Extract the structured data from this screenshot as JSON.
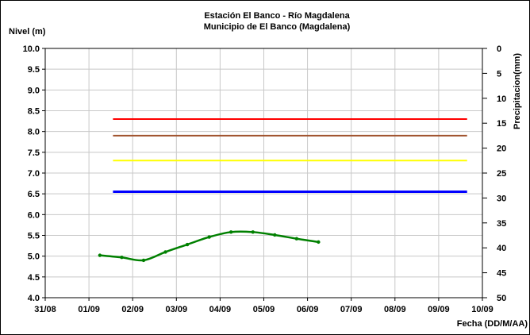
{
  "chart_data": {
    "type": "line",
    "title": "Estación El Banco - Río Magdalena",
    "subtitle": "Municipio de El Banco (Magdalena)",
    "ylabel": "Nivel (m)",
    "y2label": "Precipitacion(mm)",
    "xlabel": "Fecha (DD/M/AA)",
    "ylim": [
      4.0,
      10.0
    ],
    "y_ticks": [
      "10.0",
      "9.5",
      "9.0",
      "8.5",
      "8.0",
      "7.5",
      "7.0",
      "6.5",
      "6.0",
      "5.5",
      "5.0",
      "4.5",
      "4.0"
    ],
    "y2lim": [
      0,
      50
    ],
    "y2_reversed": true,
    "y2_ticks": [
      "0",
      "5",
      "10",
      "15",
      "20",
      "25",
      "30",
      "35",
      "40",
      "45",
      "50"
    ],
    "x_ticks": [
      "31/08",
      "01/09",
      "02/09",
      "03/09",
      "04/09",
      "05/09",
      "06/09",
      "07/09",
      "08/09",
      "09/09",
      "10/09"
    ],
    "grid": true,
    "legend": "none",
    "thresholds": [
      {
        "level": 8.3,
        "color": "#ff0000",
        "from_day": 1.55,
        "to_day": 9.65
      },
      {
        "level": 7.9,
        "color": "#a0522d",
        "from_day": 1.55,
        "to_day": 9.65
      },
      {
        "level": 7.3,
        "color": "#ffff00",
        "from_day": 1.55,
        "to_day": 9.65
      },
      {
        "level": 6.55,
        "color": "#0000ff",
        "from_day": 1.55,
        "to_day": 9.65
      }
    ],
    "series": [
      {
        "color": "#008000",
        "x": [
          1.25,
          1.75,
          2.25,
          2.75,
          3.25,
          3.75,
          4.25,
          4.75,
          5.25,
          5.75,
          6.25
        ],
        "values": [
          5.02,
          4.97,
          4.9,
          5.1,
          5.28,
          5.46,
          5.58,
          5.58,
          5.51,
          5.42,
          5.34
        ]
      }
    ]
  }
}
